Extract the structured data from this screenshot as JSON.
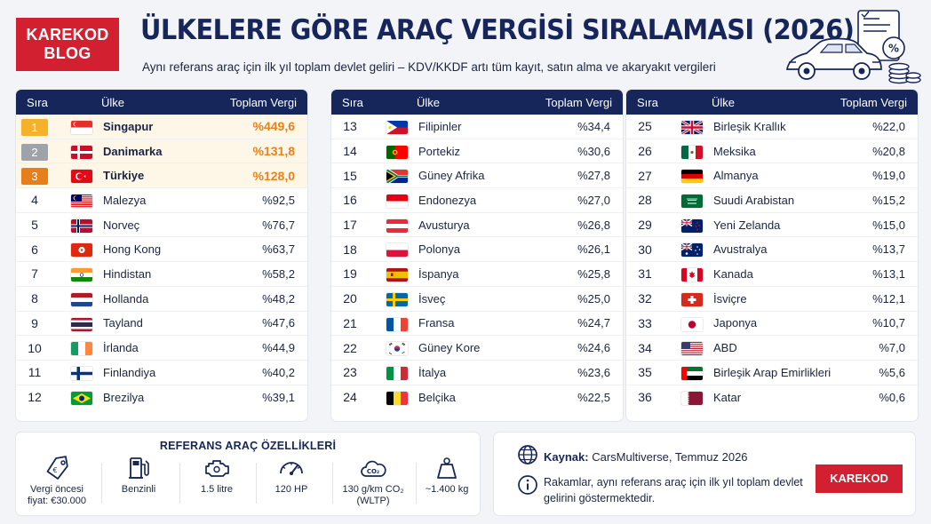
{
  "logo": {
    "line1": "KAREKOD",
    "line2": "BLOG"
  },
  "title": "ÜLKELERE GÖRE ARAÇ VERGİSİ SIRALAMASI (2026)",
  "subtitle": "Aynı referans araç için ilk yıl toplam devlet geliri – KDV/KKDF artı tüm kayıt, satın alma ve akaryakıt vergileri",
  "table_headers": {
    "rank": "Sıra",
    "country": "Ülke",
    "tax": "Toplam Vergi"
  },
  "top_badge_colors": [
    "#f4b22a",
    "#9ea3aa",
    "#e87e1a"
  ],
  "countries": [
    {
      "rank": "1",
      "name": "Singapur",
      "tax": "%449,6",
      "flag": "singapore"
    },
    {
      "rank": "2",
      "name": "Danimarka",
      "tax": "%131,8",
      "flag": "denmark"
    },
    {
      "rank": "3",
      "name": "Türkiye",
      "tax": "%128,0",
      "flag": "turkey"
    },
    {
      "rank": "4",
      "name": "Malezya",
      "tax": "%92,5",
      "flag": "malaysia"
    },
    {
      "rank": "5",
      "name": "Norveç",
      "tax": "%76,7",
      "flag": "norway"
    },
    {
      "rank": "6",
      "name": "Hong Kong",
      "tax": "%63,7",
      "flag": "hongkong"
    },
    {
      "rank": "7",
      "name": "Hindistan",
      "tax": "%58,2",
      "flag": "india"
    },
    {
      "rank": "8",
      "name": "Hollanda",
      "tax": "%48,2",
      "flag": "netherlands"
    },
    {
      "rank": "9",
      "name": "Tayland",
      "tax": "%47,6",
      "flag": "thailand"
    },
    {
      "rank": "10",
      "name": "İrlanda",
      "tax": "%44,9",
      "flag": "ireland"
    },
    {
      "rank": "11",
      "name": "Finlandiya",
      "tax": "%40,2",
      "flag": "finland"
    },
    {
      "rank": "12",
      "name": "Brezilya",
      "tax": "%39,1",
      "flag": "brazil"
    },
    {
      "rank": "13",
      "name": "Filipinler",
      "tax": "%34,4",
      "flag": "philippines"
    },
    {
      "rank": "14",
      "name": "Portekiz",
      "tax": "%30,6",
      "flag": "portugal"
    },
    {
      "rank": "15",
      "name": "Güney Afrika",
      "tax": "%27,8",
      "flag": "southafrica"
    },
    {
      "rank": "16",
      "name": "Endonezya",
      "tax": "%27,0",
      "flag": "indonesia"
    },
    {
      "rank": "17",
      "name": "Avusturya",
      "tax": "%26,8",
      "flag": "austria"
    },
    {
      "rank": "18",
      "name": "Polonya",
      "tax": "%26,1",
      "flag": "poland"
    },
    {
      "rank": "19",
      "name": "İspanya",
      "tax": "%25,8",
      "flag": "spain"
    },
    {
      "rank": "20",
      "name": "İsveç",
      "tax": "%25,0",
      "flag": "sweden"
    },
    {
      "rank": "21",
      "name": "Fransa",
      "tax": "%24,7",
      "flag": "france"
    },
    {
      "rank": "22",
      "name": "Güney Kore",
      "tax": "%24,6",
      "flag": "southkorea"
    },
    {
      "rank": "23",
      "name": "İtalya",
      "tax": "%23,6",
      "flag": "italy"
    },
    {
      "rank": "24",
      "name": "Belçika",
      "tax": "%22,5",
      "flag": "belgium"
    },
    {
      "rank": "25",
      "name": "Birleşik Krallık",
      "tax": "%22,0",
      "flag": "uk"
    },
    {
      "rank": "26",
      "name": "Meksika",
      "tax": "%20,8",
      "flag": "mexico"
    },
    {
      "rank": "27",
      "name": "Almanya",
      "tax": "%19,0",
      "flag": "germany"
    },
    {
      "rank": "28",
      "name": "Suudi Arabistan",
      "tax": "%15,2",
      "flag": "saudiarabia"
    },
    {
      "rank": "29",
      "name": "Yeni Zelanda",
      "tax": "%15,0",
      "flag": "newzealand"
    },
    {
      "rank": "30",
      "name": "Avustralya",
      "tax": "%13,7",
      "flag": "australia"
    },
    {
      "rank": "31",
      "name": "Kanada",
      "tax": "%13,1",
      "flag": "canada"
    },
    {
      "rank": "32",
      "name": "İsviçre",
      "tax": "%12,1",
      "flag": "switzerland"
    },
    {
      "rank": "33",
      "name": "Japonya",
      "tax": "%10,7",
      "flag": "japan"
    },
    {
      "rank": "34",
      "name": "ABD",
      "tax": "%7,0",
      "flag": "usa"
    },
    {
      "rank": "35",
      "name": "Birleşik Arap Emirlikleri",
      "tax": "%5,6",
      "flag": "uae"
    },
    {
      "rank": "36",
      "name": "Katar",
      "tax": "%0,6",
      "flag": "qatar"
    }
  ],
  "specs": {
    "title": "REFERANS ARAÇ ÖZELLİKLERİ",
    "items": [
      {
        "icon": "price-tag-icon",
        "label": "Vergi öncesi fiyat: €30.000"
      },
      {
        "icon": "fuel-pump-icon",
        "label": "Benzinli"
      },
      {
        "icon": "engine-icon",
        "label": "1.5 litre"
      },
      {
        "icon": "speedometer-icon",
        "label": "120 HP"
      },
      {
        "icon": "co2-cloud-icon",
        "label": "130 g/km CO₂ (WLTP)"
      },
      {
        "icon": "weight-icon",
        "label": "~1.400 kg"
      }
    ]
  },
  "source": {
    "label": "Kaynak:",
    "value": "CarsMultiverse, Temmuz 2026"
  },
  "note": "Rakamlar, aynı referans araç için ilk yıl toplam devlet gelirini göstermektedir.",
  "footer_logo": "KAREKOD BLOG",
  "colors": {
    "navy": "#16255a",
    "brand_red": "#d32030",
    "highlight_orange": "#e8821a",
    "highlight_bg": "#fef6e7"
  }
}
